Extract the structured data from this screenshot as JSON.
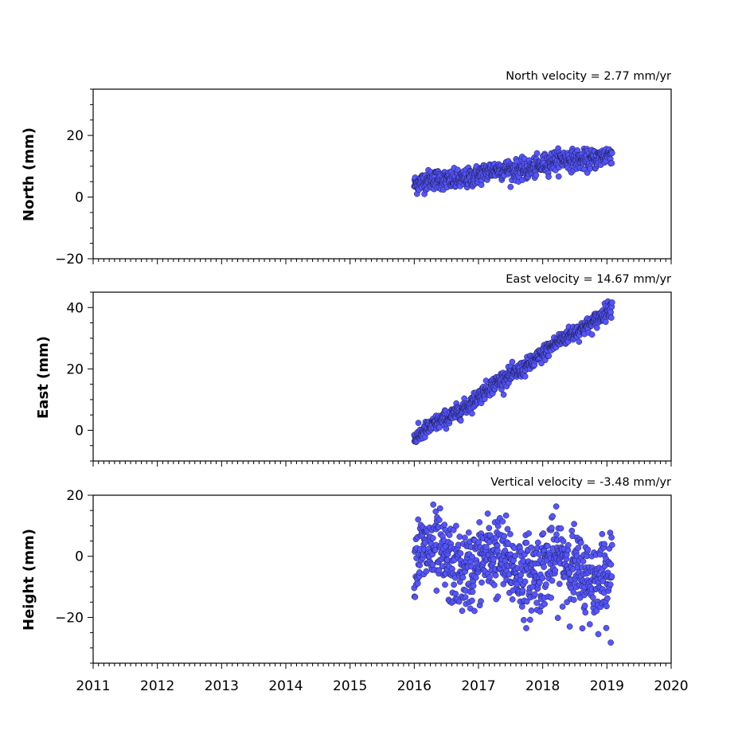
{
  "chart_data": [
    {
      "type": "scatter",
      "title": "North velocity = 2.77 mm/yr",
      "ylabel": "North (mm)",
      "xlim": [
        2011,
        2020
      ],
      "ylim": [
        -20,
        35
      ],
      "yticks": [
        -20,
        0,
        20
      ],
      "ytick_labels": [
        "−20",
        "0",
        "20"
      ],
      "marker_color": "#5555ff",
      "series": [
        {
          "x_start": 2016.0,
          "x_end": 2019.08,
          "y_start": 4.0,
          "y_end": 14.0,
          "noise": 1.6
        }
      ]
    },
    {
      "type": "scatter",
      "title": "East velocity = 14.67 mm/yr",
      "ylabel": "East (mm)",
      "xlim": [
        2011,
        2020
      ],
      "ylim": [
        -10,
        45
      ],
      "yticks": [
        0,
        20,
        40
      ],
      "ytick_labels": [
        "0",
        "20",
        "40"
      ],
      "marker_color": "#5555ff",
      "series": [
        {
          "x_start": 2016.0,
          "x_end": 2019.08,
          "y_start": -3.0,
          "y_end": 40.0,
          "noise": 1.3
        }
      ]
    },
    {
      "type": "scatter",
      "title": "Vertical velocity = -3.48 mm/yr",
      "ylabel": "Height (mm)",
      "xlim": [
        2011,
        2020
      ],
      "ylim": [
        -35,
        20
      ],
      "yticks": [
        -20,
        0,
        20
      ],
      "ytick_labels": [
        "−20",
        "0",
        "20"
      ],
      "marker_color": "#5555ff",
      "series": [
        {
          "x_start": 2016.0,
          "x_end": 2019.08,
          "y_start": -1.0,
          "y_end": -5.0,
          "noise": 6.5
        }
      ]
    }
  ],
  "xticks": [
    2011,
    2012,
    2013,
    2014,
    2015,
    2016,
    2017,
    2018,
    2019,
    2020
  ],
  "xtick_labels": [
    "2011",
    "2012",
    "2013",
    "2014",
    "2015",
    "2016",
    "2017",
    "2018",
    "2019",
    "2020"
  ]
}
